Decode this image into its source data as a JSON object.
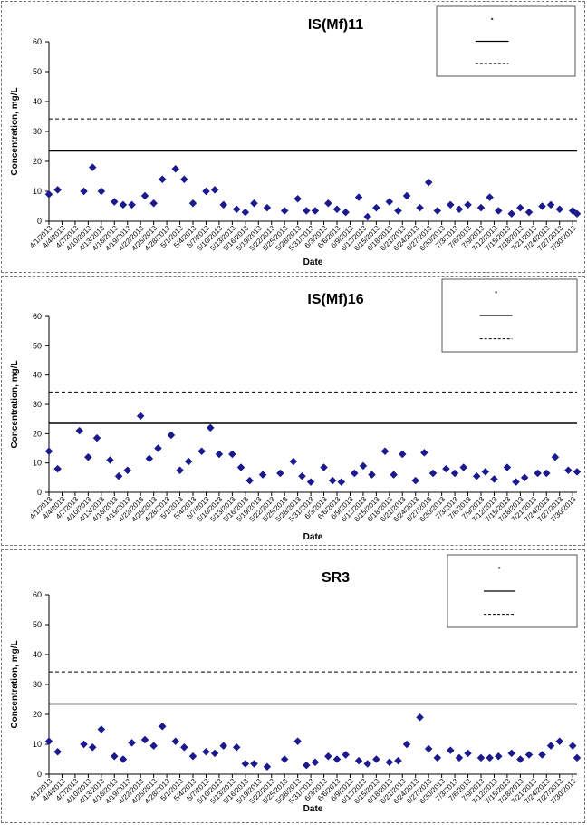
{
  "chart_data": [
    {
      "type": "scatter",
      "title": "IS(Mf)11",
      "xlabel": "Date",
      "ylabel": "Concentration, mg/L",
      "ylim": [
        0,
        60
      ],
      "yticks": [
        0,
        10,
        20,
        30,
        40,
        50,
        60
      ],
      "xlim": [
        "4/1/2013",
        "7/31/2013"
      ],
      "xticks": [
        "4/1/2013",
        "4/4/2013",
        "4/7/2013",
        "4/10/2013",
        "4/13/2013",
        "4/16/2013",
        "4/19/2013",
        "4/22/2013",
        "4/25/2013",
        "4/28/2013",
        "5/1/2013",
        "5/4/2013",
        "5/7/2013",
        "5/10/2013",
        "5/13/2013",
        "5/16/2013",
        "5/19/2013",
        "5/22/2013",
        "5/25/2013",
        "5/28/2013",
        "5/31/2013",
        "6/3/2013",
        "6/6/2013",
        "6/9/2013",
        "6/12/2013",
        "6/15/2013",
        "6/18/2013",
        "6/21/2013",
        "6/24/2013",
        "6/27/2013",
        "6/30/2013",
        "7/3/2013",
        "7/6/2013",
        "7/9/2013",
        "7/12/2013",
        "7/15/2013",
        "7/18/2013",
        "7/21/2013",
        "7/24/2013",
        "7/27/2013",
        "7/30/2013"
      ],
      "reference_lines": [
        {
          "value": 23.5,
          "style": "solid",
          "color": "#000000"
        },
        {
          "value": 34.2,
          "style": "dashed",
          "color": "#000000"
        }
      ],
      "legend_position": "top-right",
      "marker_color": "#1a1a8c",
      "points": [
        [
          "4/1/2013",
          9
        ],
        [
          "4/3/2013",
          10.5
        ],
        [
          "4/9/2013",
          10
        ],
        [
          "4/11/2013",
          18
        ],
        [
          "4/13/2013",
          10
        ],
        [
          "4/16/2013",
          6.5
        ],
        [
          "4/18/2013",
          5.5
        ],
        [
          "4/20/2013",
          5.5
        ],
        [
          "4/23/2013",
          8.5
        ],
        [
          "4/25/2013",
          6
        ],
        [
          "4/27/2013",
          14
        ],
        [
          "4/30/2013",
          17.5
        ],
        [
          "5/2/2013",
          14
        ],
        [
          "5/4/2013",
          6
        ],
        [
          "5/7/2013",
          10
        ],
        [
          "5/9/2013",
          10.5
        ],
        [
          "5/11/2013",
          5.5
        ],
        [
          "5/14/2013",
          4
        ],
        [
          "5/16/2013",
          3
        ],
        [
          "5/18/2013",
          6
        ],
        [
          "5/21/2013",
          4.5
        ],
        [
          "5/25/2013",
          3.5
        ],
        [
          "5/28/2013",
          7.5
        ],
        [
          "5/30/2013",
          3.5
        ],
        [
          "6/1/2013",
          3.5
        ],
        [
          "6/4/2013",
          6
        ],
        [
          "6/6/2013",
          4
        ],
        [
          "6/8/2013",
          3
        ],
        [
          "6/11/2013",
          8
        ],
        [
          "6/13/2013",
          1.5
        ],
        [
          "6/15/2013",
          4.5
        ],
        [
          "6/18/2013",
          6.5
        ],
        [
          "6/20/2013",
          3.5
        ],
        [
          "6/22/2013",
          8.5
        ],
        [
          "6/25/2013",
          4.5
        ],
        [
          "6/27/2013",
          13
        ],
        [
          "6/29/2013",
          3.5
        ],
        [
          "7/2/2013",
          5.5
        ],
        [
          "7/4/2013",
          4
        ],
        [
          "7/6/2013",
          5.5
        ],
        [
          "7/9/2013",
          4.5
        ],
        [
          "7/11/2013",
          8
        ],
        [
          "7/13/2013",
          3.5
        ],
        [
          "7/16/2013",
          2.5
        ],
        [
          "7/18/2013",
          4.5
        ],
        [
          "7/20/2013",
          3
        ],
        [
          "7/23/2013",
          5
        ],
        [
          "7/25/2013",
          5.5
        ],
        [
          "7/27/2013",
          4
        ],
        [
          "7/30/2013",
          3.5
        ],
        [
          "7/31/2013",
          2.5
        ]
      ]
    },
    {
      "type": "scatter",
      "title": "IS(Mf)16",
      "xlabel": "Date",
      "ylabel": "Concentration, mg/L",
      "ylim": [
        0,
        60
      ],
      "yticks": [
        0,
        10,
        20,
        30,
        40,
        50,
        60
      ],
      "xlim": [
        "4/1/2013",
        "7/31/2013"
      ],
      "xticks": [
        "4/1/2013",
        "4/4/2013",
        "4/7/2013",
        "4/10/2013",
        "4/13/2013",
        "4/16/2013",
        "4/19/2013",
        "4/22/2013",
        "4/25/2013",
        "4/28/2013",
        "5/1/2013",
        "5/4/2013",
        "5/7/2013",
        "5/10/2013",
        "5/13/2013",
        "5/16/2013",
        "5/19/2013",
        "5/22/2013",
        "5/25/2013",
        "5/28/2013",
        "5/31/2013",
        "6/3/2013",
        "6/6/2013",
        "6/9/2013",
        "6/12/2013",
        "6/15/2013",
        "6/18/2013",
        "6/21/2013",
        "6/24/2013",
        "6/27/2013",
        "6/30/2013",
        "7/3/2013",
        "7/6/2013",
        "7/9/2013",
        "7/12/2013",
        "7/15/2013",
        "7/18/2013",
        "7/21/2013",
        "7/24/2013",
        "7/27/2013",
        "7/30/2013"
      ],
      "reference_lines": [
        {
          "value": 23.5,
          "style": "solid",
          "color": "#000000"
        },
        {
          "value": 34.2,
          "style": "dashed",
          "color": "#000000"
        }
      ],
      "legend_position": "top-right",
      "marker_color": "#1a1a8c",
      "points": [
        [
          "4/1/2013",
          14
        ],
        [
          "4/3/2013",
          8
        ],
        [
          "4/8/2013",
          21
        ],
        [
          "4/10/2013",
          12
        ],
        [
          "4/12/2013",
          18.5
        ],
        [
          "4/15/2013",
          11
        ],
        [
          "4/17/2013",
          5.5
        ],
        [
          "4/19/2013",
          7.5
        ],
        [
          "4/22/2013",
          26
        ],
        [
          "4/24/2013",
          11.5
        ],
        [
          "4/26/2013",
          15
        ],
        [
          "4/29/2013",
          19.5
        ],
        [
          "5/1/2013",
          7.5
        ],
        [
          "5/3/2013",
          10.5
        ],
        [
          "5/6/2013",
          14
        ],
        [
          "5/8/2013",
          22
        ],
        [
          "5/10/2013",
          13
        ],
        [
          "5/13/2013",
          13
        ],
        [
          "5/15/2013",
          8.5
        ],
        [
          "5/17/2013",
          4
        ],
        [
          "5/20/2013",
          6
        ],
        [
          "5/24/2013",
          6.5
        ],
        [
          "5/27/2013",
          10.5
        ],
        [
          "5/29/2013",
          5.5
        ],
        [
          "5/31/2013",
          3.5
        ],
        [
          "6/3/2013",
          8.5
        ],
        [
          "6/5/2013",
          4
        ],
        [
          "6/7/2013",
          3.5
        ],
        [
          "6/10/2013",
          6.5
        ],
        [
          "6/12/2013",
          9
        ],
        [
          "6/14/2013",
          6
        ],
        [
          "6/17/2013",
          14
        ],
        [
          "6/19/2013",
          6
        ],
        [
          "6/21/2013",
          13
        ],
        [
          "6/24/2013",
          4
        ],
        [
          "6/26/2013",
          13.5
        ],
        [
          "6/28/2013",
          6.5
        ],
        [
          "7/1/2013",
          8
        ],
        [
          "7/3/2013",
          6.5
        ],
        [
          "7/5/2013",
          8.5
        ],
        [
          "7/8/2013",
          5.5
        ],
        [
          "7/10/2013",
          7
        ],
        [
          "7/12/2013",
          4.5
        ],
        [
          "7/15/2013",
          8.5
        ],
        [
          "7/17/2013",
          3.5
        ],
        [
          "7/19/2013",
          5
        ],
        [
          "7/22/2013",
          6.5
        ],
        [
          "7/24/2013",
          6.5
        ],
        [
          "7/26/2013",
          12
        ],
        [
          "7/29/2013",
          7.5
        ],
        [
          "7/31/2013",
          7
        ]
      ]
    },
    {
      "type": "scatter",
      "title": "SR3",
      "xlabel": "Date",
      "ylabel": "Concentration, mg/L",
      "ylim": [
        0,
        60
      ],
      "yticks": [
        0,
        10,
        20,
        30,
        40,
        50,
        60
      ],
      "xlim": [
        "4/1/2013",
        "7/31/2013"
      ],
      "xticks": [
        "4/1/2013",
        "4/4/2013",
        "4/7/2013",
        "4/10/2013",
        "4/13/2013",
        "4/16/2013",
        "4/19/2013",
        "4/22/2013",
        "4/25/2013",
        "4/28/2013",
        "5/1/2013",
        "5/4/2013",
        "5/7/2013",
        "5/10/2013",
        "5/13/2013",
        "5/16/2013",
        "5/19/2013",
        "5/22/2013",
        "5/25/2013",
        "5/28/2013",
        "5/31/2013",
        "6/3/2013",
        "6/6/2013",
        "6/9/2013",
        "6/12/2013",
        "6/15/2013",
        "6/18/2013",
        "6/21/2013",
        "6/24/2013",
        "6/27/2013",
        "6/30/2013",
        "7/3/2013",
        "7/6/2013",
        "7/9/2013",
        "7/12/2013",
        "7/15/2013",
        "7/18/2013",
        "7/21/2013",
        "7/24/2013",
        "7/27/2013",
        "7/30/2013"
      ],
      "reference_lines": [
        {
          "value": 23.5,
          "style": "solid",
          "color": "#000000"
        },
        {
          "value": 34.2,
          "style": "dashed",
          "color": "#000000"
        }
      ],
      "legend_position": "top-right",
      "marker_color": "#1a1a8c",
      "points": [
        [
          "4/1/2013",
          11
        ],
        [
          "4/3/2013",
          7.5
        ],
        [
          "4/9/2013",
          10
        ],
        [
          "4/11/2013",
          9
        ],
        [
          "4/13/2013",
          15
        ],
        [
          "4/16/2013",
          6
        ],
        [
          "4/18/2013",
          5
        ],
        [
          "4/20/2013",
          10.5
        ],
        [
          "4/23/2013",
          11.5
        ],
        [
          "4/25/2013",
          9.5
        ],
        [
          "4/27/2013",
          16
        ],
        [
          "4/30/2013",
          11
        ],
        [
          "5/2/2013",
          9
        ],
        [
          "5/4/2013",
          6
        ],
        [
          "5/7/2013",
          7.5
        ],
        [
          "5/9/2013",
          7
        ],
        [
          "5/11/2013",
          9.5
        ],
        [
          "5/14/2013",
          9
        ],
        [
          "5/16/2013",
          3.5
        ],
        [
          "5/18/2013",
          3.5
        ],
        [
          "5/21/2013",
          2.5
        ],
        [
          "5/25/2013",
          5
        ],
        [
          "5/28/2013",
          11
        ],
        [
          "5/30/2013",
          3
        ],
        [
          "6/1/2013",
          4
        ],
        [
          "6/4/2013",
          6
        ],
        [
          "6/6/2013",
          5
        ],
        [
          "6/8/2013",
          6.5
        ],
        [
          "6/11/2013",
          4.5
        ],
        [
          "6/13/2013",
          3.5
        ],
        [
          "6/15/2013",
          5
        ],
        [
          "6/18/2013",
          4
        ],
        [
          "6/20/2013",
          4.5
        ],
        [
          "6/22/2013",
          10
        ],
        [
          "6/25/2013",
          19
        ],
        [
          "6/27/2013",
          8.5
        ],
        [
          "6/29/2013",
          5.5
        ],
        [
          "7/2/2013",
          8
        ],
        [
          "7/4/2013",
          5.5
        ],
        [
          "7/6/2013",
          7
        ],
        [
          "7/9/2013",
          5.5
        ],
        [
          "7/11/2013",
          5.5
        ],
        [
          "7/13/2013",
          6
        ],
        [
          "7/16/2013",
          7
        ],
        [
          "7/18/2013",
          5
        ],
        [
          "7/20/2013",
          6.5
        ],
        [
          "7/23/2013",
          6.5
        ],
        [
          "7/25/2013",
          9.5
        ],
        [
          "7/27/2013",
          11
        ],
        [
          "7/30/2013",
          9.5
        ],
        [
          "7/31/2013",
          5.5
        ]
      ]
    }
  ]
}
